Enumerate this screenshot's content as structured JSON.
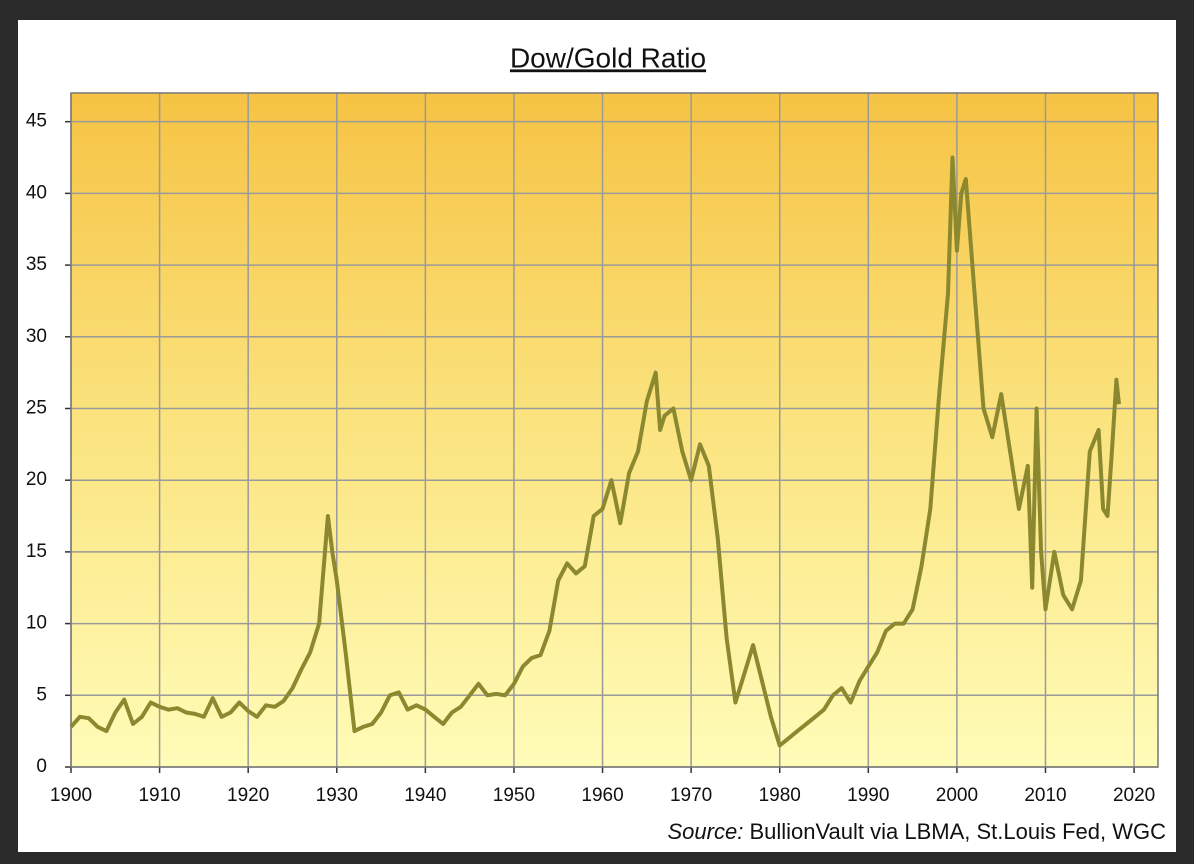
{
  "chart_data": {
    "type": "line",
    "title": "Dow/Gold Ratio",
    "source_label": "Source:",
    "source": "BullionVault via LBMA, St.Louis Fed, WGC",
    "color": "#8c8830",
    "grid": true,
    "xlim": [
      1900,
      2022.7
    ],
    "xticks": [
      1900,
      1910,
      1920,
      1930,
      1940,
      1950,
      1960,
      1970,
      1980,
      1990,
      2000,
      2010,
      2020
    ],
    "ylim": [
      0,
      47
    ],
    "yticks": [
      0,
      5,
      10,
      15,
      20,
      25,
      30,
      35,
      40,
      45
    ],
    "x": [
      1900,
      1901,
      1902,
      1903,
      1904,
      1905,
      1906,
      1907,
      1908,
      1909,
      1910,
      1911,
      1912,
      1913,
      1914,
      1915,
      1916,
      1917,
      1918,
      1919,
      1920,
      1921,
      1922,
      1923,
      1924,
      1925,
      1926,
      1927,
      1928,
      1929,
      1929.5,
      1930,
      1931,
      1932,
      1933,
      1934,
      1935,
      1936,
      1937,
      1938,
      1939,
      1940,
      1941,
      1942,
      1943,
      1944,
      1945,
      1946,
      1947,
      1948,
      1949,
      1950,
      1951,
      1952,
      1953,
      1954,
      1955,
      1956,
      1957,
      1958,
      1959,
      1960,
      1961,
      1962,
      1963,
      1964,
      1965,
      1966,
      1966.5,
      1967,
      1968,
      1969,
      1970,
      1971,
      1972,
      1973,
      1974,
      1975,
      1976,
      1977,
      1978,
      1979,
      1980,
      1981,
      1982,
      1983,
      1984,
      1985,
      1986,
      1987,
      1988,
      1989,
      1990,
      1991,
      1992,
      1993,
      1994,
      1995,
      1996,
      1997,
      1998,
      1999,
      1999.5,
      2000,
      2000.5,
      2001,
      2002,
      2003,
      2004,
      2005,
      2006,
      2007,
      2008,
      2008.5,
      2009,
      2009.5,
      2010,
      2011,
      2012,
      2013,
      2014,
      2015,
      2016,
      2016.5,
      2017,
      2017.5,
      2018,
      2018.3
    ],
    "values": [
      2.8,
      3.5,
      3.4,
      2.8,
      2.5,
      3.8,
      4.7,
      3.0,
      3.5,
      4.5,
      4.2,
      4.0,
      4.1,
      3.8,
      3.7,
      3.5,
      4.8,
      3.5,
      3.8,
      4.5,
      3.9,
      3.5,
      4.3,
      4.2,
      4.6,
      5.5,
      6.8,
      8.0,
      10.0,
      17.5,
      15.0,
      13.0,
      8.0,
      2.5,
      2.8,
      3.0,
      3.8,
      5.0,
      5.2,
      4.0,
      4.3,
      4.0,
      3.5,
      3.0,
      3.8,
      4.2,
      5.0,
      5.8,
      5.0,
      5.1,
      5.0,
      5.8,
      7.0,
      7.6,
      7.8,
      9.5,
      13.0,
      14.2,
      13.5,
      14.0,
      17.5,
      18.0,
      20.0,
      17.0,
      20.5,
      22.0,
      25.5,
      27.5,
      23.5,
      24.5,
      25.0,
      22.0,
      20.0,
      22.5,
      21.0,
      16.0,
      9.0,
      4.5,
      6.5,
      8.5,
      6.0,
      3.5,
      1.5,
      2.0,
      2.5,
      3.0,
      3.5,
      4.0,
      5.0,
      5.5,
      4.5,
      6.0,
      7.0,
      8.0,
      9.5,
      10.0,
      10.0,
      11.0,
      14.0,
      18.0,
      26.0,
      33.0,
      42.5,
      36.0,
      40.0,
      41.0,
      33.0,
      25.0,
      23.0,
      26.0,
      22.0,
      18.0,
      21.0,
      12.5,
      25.0,
      15.0,
      11.0,
      15.0,
      12.0,
      11.0,
      13.0,
      22.0,
      23.5,
      18.0,
      17.5,
      22.0,
      27.0,
      25.3
    ]
  }
}
